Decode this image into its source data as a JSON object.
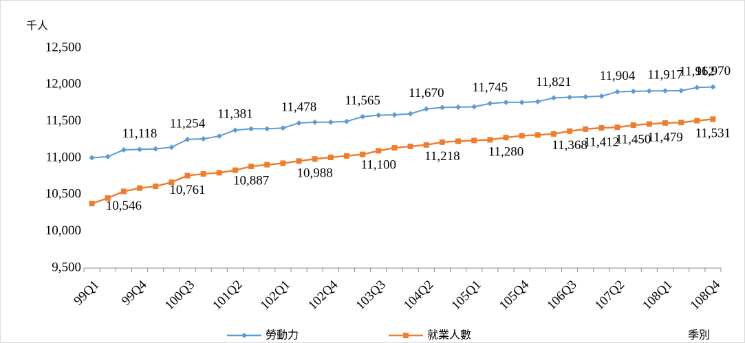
{
  "chart_data": {
    "type": "line",
    "y_unit": "千人",
    "x_unit": "季別",
    "categories": [
      "99Q1",
      null,
      null,
      "99Q4",
      null,
      null,
      "100Q3",
      null,
      null,
      "101Q2",
      null,
      null,
      "102Q1",
      null,
      null,
      "102Q4",
      null,
      null,
      "103Q3",
      null,
      null,
      "104Q2",
      null,
      null,
      "105Q1",
      null,
      null,
      "105Q4",
      null,
      null,
      "106Q3",
      null,
      null,
      "107Q2",
      null,
      null,
      "108Q1",
      null,
      null,
      "108Q4"
    ],
    "series": [
      {
        "name": "勞動力",
        "color": "#5b9bd5",
        "marker": "diamond",
        "values": [
          11005,
          11020,
          11112,
          11118,
          11125,
          11148,
          11254,
          11262,
          11300,
          11381,
          11400,
          11400,
          11410,
          11478,
          11490,
          11490,
          11500,
          11565,
          11585,
          11590,
          11605,
          11670,
          11690,
          11695,
          11700,
          11745,
          11760,
          11760,
          11770,
          11821,
          11830,
          11835,
          11845,
          11904,
          11910,
          11915,
          11917,
          11920,
          11962,
          11970
        ],
        "value_labels": [
          null,
          null,
          null,
          "11,118",
          null,
          null,
          "11,254",
          null,
          null,
          "11,381",
          null,
          null,
          null,
          "11,478",
          null,
          null,
          null,
          "11,565",
          null,
          null,
          null,
          "11,670",
          null,
          null,
          null,
          "11,745",
          null,
          null,
          null,
          "11,821",
          null,
          null,
          null,
          "11,904",
          null,
          null,
          "11,917",
          null,
          "11,962",
          "11,970"
        ]
      },
      {
        "name": "就業人數",
        "color": "#ed7d31",
        "marker": "square",
        "values": [
          10380,
          10455,
          10546,
          10590,
          10615,
          10670,
          10761,
          10785,
          10800,
          10835,
          10887,
          10910,
          10930,
          10960,
          10988,
          11010,
          11030,
          11050,
          11100,
          11140,
          11160,
          11180,
          11218,
          11230,
          11240,
          11250,
          11280,
          11305,
          11315,
          11330,
          11368,
          11395,
          11412,
          11420,
          11450,
          11465,
          11479,
          11485,
          11510,
          11531
        ],
        "value_labels": [
          null,
          null,
          "10,546",
          null,
          null,
          null,
          "10,761",
          null,
          null,
          null,
          "10,887",
          null,
          null,
          null,
          "10,988",
          null,
          null,
          null,
          "11,100",
          null,
          null,
          null,
          "11,218",
          null,
          null,
          null,
          "11,280",
          null,
          null,
          null,
          "11,368",
          null,
          "11,412",
          null,
          "11,450",
          null,
          "11,479",
          null,
          null,
          "11,531"
        ]
      }
    ],
    "ylim": [
      9500,
      12500
    ],
    "yticks": [
      {
        "value": 9500,
        "label": "9,500"
      },
      {
        "value": 10000,
        "label": "10,000"
      },
      {
        "value": 10500,
        "label": "10,500"
      },
      {
        "value": 11000,
        "label": "11,000"
      },
      {
        "value": 11500,
        "label": "11,500"
      },
      {
        "value": 12000,
        "label": "12,000"
      },
      {
        "value": 12500,
        "label": "12,500"
      }
    ],
    "grid": false,
    "legend": "bottom"
  }
}
